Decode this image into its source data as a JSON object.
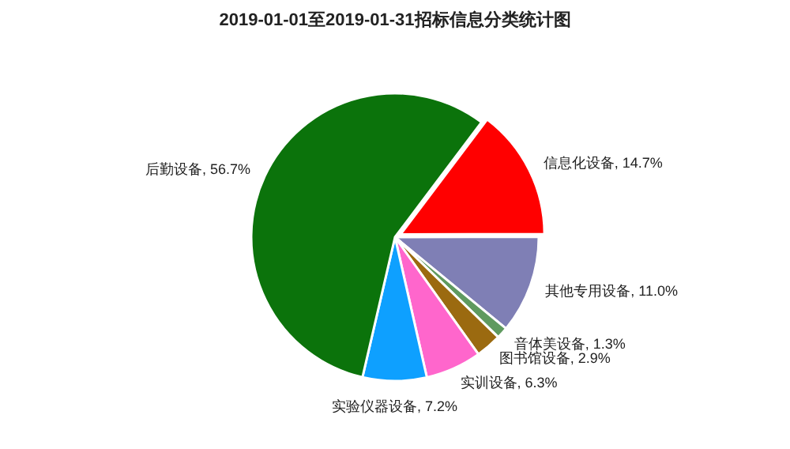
{
  "chart_data": {
    "type": "pie",
    "title": "2019-01-01至2019-01-31招标信息分类统计图",
    "categories": [
      "信息化设备",
      "其他专用设备",
      "音体美设备",
      "图书馆设备",
      "实训设备",
      "实验仪器设备",
      "后勤设备"
    ],
    "values": [
      14.7,
      11.0,
      1.3,
      2.9,
      6.3,
      7.2,
      56.7
    ],
    "colors": [
      "#ff0000",
      "#7f7fb5",
      "#5f9a5f",
      "#9b6a10",
      "#ff66cc",
      "#0ea0ff",
      "#0b730b"
    ],
    "value_labels": [
      "14.7%",
      "11.0%",
      "1.3%",
      "2.9%",
      "6.3%",
      "7.2%",
      "56.7%"
    ]
  }
}
